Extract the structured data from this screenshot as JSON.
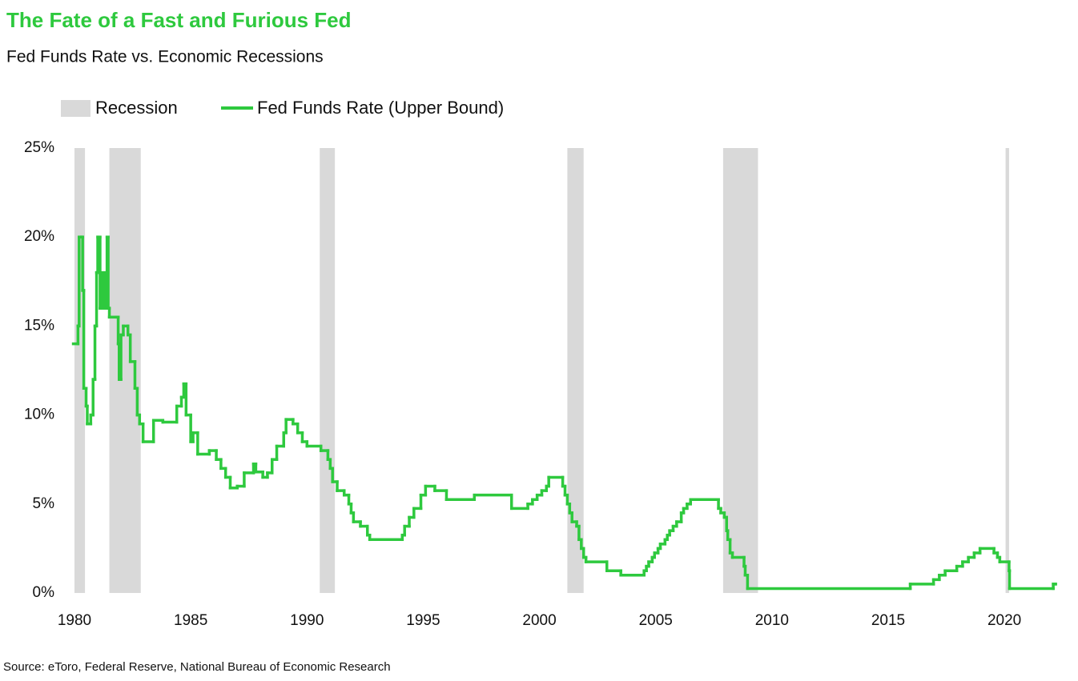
{
  "chart_data": {
    "type": "line",
    "title": "The Fate of a Fast and Furious Fed",
    "subtitle": "Fed Funds Rate vs. Economic Recessions",
    "source": "Source: eToro, Federal Reserve, National Bureau of Economic Research",
    "step": true,
    "recessions": {
      "name": "Recession",
      "color": "#d9d9d9",
      "ranges": [
        [
          1980.0,
          1980.45
        ],
        [
          1981.5,
          1982.85
        ],
        [
          1990.55,
          1991.2
        ],
        [
          2001.2,
          2001.9
        ],
        [
          2007.9,
          2009.4
        ],
        [
          2020.05,
          2020.2
        ]
      ]
    },
    "series": [
      {
        "name": "Fed Funds Rate (Upper Bound)",
        "color": "#2ec93e",
        "x": [
          1979.95,
          1980.15,
          1980.2,
          1980.3,
          1980.35,
          1980.4,
          1980.5,
          1980.55,
          1980.7,
          1980.8,
          1980.88,
          1980.95,
          1981.0,
          1981.1,
          1981.2,
          1981.3,
          1981.4,
          1981.45,
          1981.5,
          1981.8,
          1981.88,
          1981.92,
          1982.0,
          1982.1,
          1982.3,
          1982.4,
          1982.6,
          1982.7,
          1982.8,
          1982.95,
          1983.4,
          1983.8,
          1984.4,
          1984.6,
          1984.7,
          1984.8,
          1985.0,
          1985.1,
          1985.3,
          1985.8,
          1986.1,
          1986.3,
          1986.5,
          1986.7,
          1987.0,
          1987.3,
          1987.7,
          1987.8,
          1988.1,
          1988.3,
          1988.5,
          1988.7,
          1989.0,
          1989.1,
          1989.4,
          1989.6,
          1989.8,
          1990.0,
          1990.6,
          1990.9,
          1991.0,
          1991.1,
          1991.3,
          1991.6,
          1991.8,
          1991.9,
          1992.0,
          1992.3,
          1992.6,
          1992.7,
          1994.1,
          1994.2,
          1994.4,
          1994.6,
          1994.9,
          1995.1,
          1995.5,
          1996.0,
          1997.2,
          1998.8,
          1999.5,
          1999.7,
          1999.9,
          2000.1,
          2000.3,
          2000.4,
          2001.0,
          2001.1,
          2001.2,
          2001.3,
          2001.4,
          2001.6,
          2001.7,
          2001.8,
          2001.9,
          2002.0,
          2002.9,
          2003.5,
          2004.5,
          2004.6,
          2004.7,
          2004.85,
          2004.95,
          2005.1,
          2005.2,
          2005.4,
          2005.5,
          2005.6,
          2005.75,
          2005.9,
          2006.1,
          2006.2,
          2006.35,
          2006.5,
          2007.7,
          2007.8,
          2007.95,
          2008.05,
          2008.1,
          2008.2,
          2008.3,
          2008.8,
          2008.85,
          2008.95,
          2015.95,
          2016.95,
          2017.2,
          2017.45,
          2017.95,
          2018.2,
          2018.45,
          2018.7,
          2018.95,
          2019.55,
          2019.7,
          2019.8,
          2020.2,
          2020.22,
          2022.1,
          2022.2
        ],
        "values": [
          14,
          15,
          20,
          20,
          17,
          11.5,
          10.5,
          9.5,
          10,
          12,
          15,
          18,
          20,
          16,
          18,
          16,
          20,
          16,
          15.5,
          15.5,
          14,
          12,
          14.5,
          15,
          14.5,
          13,
          11.5,
          10,
          9.5,
          8.5,
          9.7,
          9.6,
          10.5,
          11,
          11.75,
          10,
          8.5,
          9,
          7.8,
          8,
          7.5,
          7,
          6.5,
          5.9,
          6,
          6.75,
          7.25,
          6.8,
          6.5,
          6.75,
          7.5,
          8.25,
          9,
          9.75,
          9.5,
          9,
          8.5,
          8.25,
          8,
          7.5,
          7,
          6.25,
          5.75,
          5.5,
          5,
          4.5,
          4,
          3.75,
          3.25,
          3,
          3.25,
          3.75,
          4.25,
          4.75,
          5.5,
          6,
          5.75,
          5.25,
          5.5,
          4.75,
          5,
          5.25,
          5.5,
          5.75,
          6,
          6.5,
          6,
          5.5,
          5,
          4.5,
          4,
          3.75,
          3,
          2.5,
          2,
          1.75,
          1.25,
          1,
          1.25,
          1.5,
          1.75,
          2,
          2.25,
          2.5,
          2.75,
          3,
          3.25,
          3.5,
          3.75,
          4,
          4.5,
          4.75,
          5,
          5.25,
          4.75,
          4.5,
          4.25,
          3.5,
          3,
          2.25,
          2,
          1.5,
          1,
          0.25,
          0.5,
          0.75,
          1,
          1.25,
          1.5,
          1.75,
          2,
          2.25,
          2.5,
          2.25,
          2,
          1.75,
          1.25,
          0.25,
          0.5,
          0.5
        ]
      }
    ],
    "xlim": [
      1980,
      2022.2
    ],
    "ylim": [
      0,
      25
    ],
    "xticks": [
      1980,
      1985,
      1990,
      1995,
      2000,
      2005,
      2010,
      2015,
      2020
    ],
    "yticks": [
      {
        "value": 0,
        "label": "0%"
      },
      {
        "value": 5,
        "label": "5%"
      },
      {
        "value": 10,
        "label": "10%"
      },
      {
        "value": 15,
        "label": "15%"
      },
      {
        "value": 20,
        "label": "20%"
      },
      {
        "value": 25,
        "label": "25%"
      }
    ],
    "grid": false
  }
}
